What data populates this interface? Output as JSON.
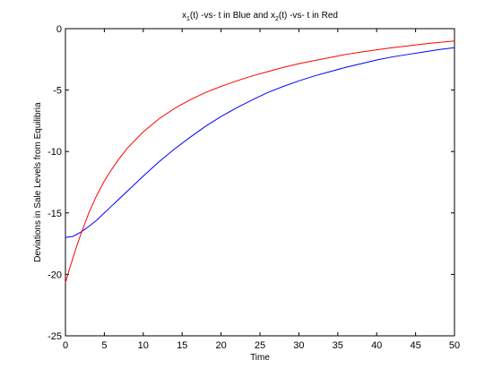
{
  "chart_data": {
    "type": "line",
    "title_parts": {
      "a": "x",
      "a_sub": "1",
      "b": "(t) -vs- t in Blue and x",
      "b_sub": "2",
      "c": "(t) -vs- t in Red"
    },
    "xlabel": "Time",
    "ylabel": "Deviations in Sale Levels from Equilibria",
    "xlim": [
      0,
      50
    ],
    "ylim": [
      -25,
      0
    ],
    "xticks": [
      0,
      5,
      10,
      15,
      20,
      25,
      30,
      35,
      40,
      45,
      50
    ],
    "yticks": [
      0,
      -5,
      -10,
      -15,
      -20,
      -25
    ],
    "grid": false,
    "series": [
      {
        "color": "#0000ff",
        "x": [
          0,
          1,
          2,
          3,
          4,
          5,
          6,
          8,
          10,
          12,
          14,
          16,
          18,
          20,
          22,
          24,
          26,
          28,
          30,
          32,
          34,
          36,
          38,
          40,
          42,
          44,
          46,
          48,
          50
        ],
        "y": [
          -17.0,
          -16.9,
          -16.55,
          -16.1,
          -15.6,
          -15.0,
          -14.4,
          -13.2,
          -12.0,
          -10.85,
          -9.8,
          -8.85,
          -7.95,
          -7.15,
          -6.45,
          -5.8,
          -5.2,
          -4.7,
          -4.25,
          -3.85,
          -3.5,
          -3.15,
          -2.85,
          -2.55,
          -2.3,
          -2.1,
          -1.9,
          -1.7,
          -1.55
        ]
      },
      {
        "color": "#ff0000",
        "x": [
          0,
          0.5,
          1,
          1.5,
          2,
          3,
          4,
          5,
          6,
          7,
          8,
          10,
          12,
          14,
          16,
          18,
          20,
          22,
          24,
          26,
          28,
          30,
          32,
          34,
          36,
          38,
          40,
          42,
          44,
          46,
          48,
          50
        ],
        "y": [
          -20.7,
          -19.6,
          -18.6,
          -17.6,
          -16.7,
          -15.0,
          -13.6,
          -12.4,
          -11.4,
          -10.5,
          -9.7,
          -8.4,
          -7.35,
          -6.5,
          -5.8,
          -5.2,
          -4.7,
          -4.25,
          -3.85,
          -3.5,
          -3.15,
          -2.85,
          -2.6,
          -2.35,
          -2.1,
          -1.9,
          -1.72,
          -1.55,
          -1.4,
          -1.25,
          -1.12,
          -1.0
        ]
      }
    ]
  }
}
